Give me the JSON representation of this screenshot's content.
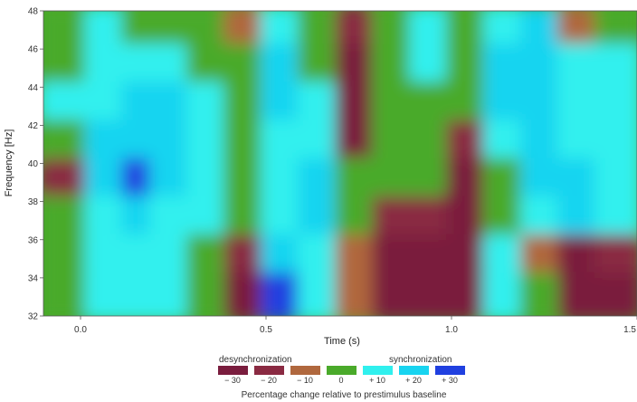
{
  "chart_data": {
    "type": "heatmap",
    "title": "",
    "xlabel": "Time (s)",
    "ylabel": "Frequency [Hz]",
    "xlim": [
      -0.1,
      1.5
    ],
    "ylim": [
      32,
      48
    ],
    "x_ticks": [
      0.0,
      0.5,
      1.0,
      1.5
    ],
    "x_tick_labels": [
      "0.0",
      "0.5",
      "1.0",
      "1.5"
    ],
    "y_ticks": [
      32,
      34,
      36,
      38,
      40,
      42,
      44,
      46,
      48
    ],
    "y_tick_labels": [
      "32",
      "34",
      "36",
      "38",
      "40",
      "42",
      "44",
      "46",
      "48"
    ],
    "x": [
      -0.05,
      0.1,
      0.15,
      0.25,
      0.35,
      0.45,
      0.55,
      0.65,
      0.75,
      0.85,
      0.95,
      1.05,
      1.15,
      1.25,
      1.35,
      1.45
    ],
    "y": [
      47,
      45,
      43,
      41,
      39,
      37,
      35,
      33
    ],
    "z": [
      [
        0,
        10,
        0,
        0,
        0,
        -10,
        10,
        0,
        -20,
        0,
        10,
        0,
        10,
        20,
        -10,
        0
      ],
      [
        0,
        10,
        10,
        10,
        0,
        0,
        20,
        0,
        -30,
        0,
        10,
        0,
        20,
        20,
        10,
        10
      ],
      [
        10,
        10,
        20,
        20,
        10,
        0,
        20,
        10,
        -30,
        0,
        0,
        0,
        20,
        20,
        10,
        10
      ],
      [
        0,
        20,
        20,
        20,
        10,
        0,
        10,
        10,
        -30,
        0,
        0,
        -20,
        10,
        20,
        10,
        10
      ],
      [
        -20,
        20,
        30,
        20,
        10,
        0,
        10,
        20,
        0,
        0,
        0,
        -30,
        0,
        20,
        20,
        10
      ],
      [
        0,
        10,
        20,
        10,
        10,
        0,
        10,
        20,
        0,
        -20,
        -20,
        -30,
        0,
        10,
        20,
        10
      ],
      [
        0,
        10,
        10,
        10,
        0,
        -20,
        20,
        10,
        -10,
        -30,
        -30,
        -30,
        10,
        -10,
        -30,
        -20
      ],
      [
        0,
        10,
        10,
        10,
        0,
        -30,
        30,
        10,
        -10,
        -30,
        -30,
        -30,
        10,
        0,
        -30,
        -30
      ]
    ],
    "legend": {
      "left_heading": "desynchronization",
      "right_heading": "synchronization",
      "caption": "Percentage change relative to prestimulus baseline",
      "items": [
        {
          "label": "− 30",
          "value": -30,
          "color": "#7a1d3e"
        },
        {
          "label": "− 20",
          "value": -20,
          "color": "#8a2a42"
        },
        {
          "label": "− 10",
          "value": -10,
          "color": "#b0683e"
        },
        {
          "label": "0",
          "value": 0,
          "color": "#4aaa2a"
        },
        {
          "label": "+ 10",
          "value": 10,
          "color": "#30f0ee"
        },
        {
          "label": "+ 20",
          "value": 20,
          "color": "#18d4f0"
        },
        {
          "label": "+ 30",
          "value": 30,
          "color": "#2040e0"
        }
      ]
    }
  }
}
